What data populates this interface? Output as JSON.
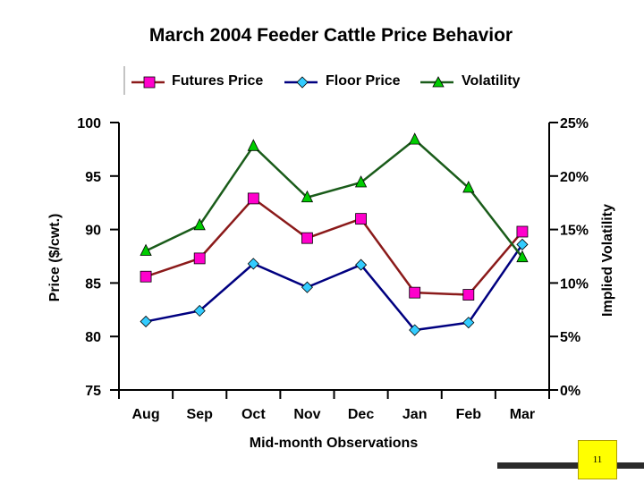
{
  "chart_data": {
    "type": "line",
    "title": "March 2004 Feeder Cattle Price Behavior",
    "xlabel": "Mid-month Observations",
    "ylabel": "Price ($/cwt.)",
    "y2label": "Implied Volatility",
    "categories": [
      "Aug",
      "Sep",
      "Oct",
      "Nov",
      "Dec",
      "Jan",
      "Feb",
      "Mar"
    ],
    "ylim": [
      75,
      100
    ],
    "yticks": [
      75,
      80,
      85,
      90,
      95,
      100
    ],
    "y2lim": [
      0,
      25
    ],
    "y2ticks": [
      "0%",
      "5%",
      "10%",
      "15%",
      "20%",
      "25%"
    ],
    "legend_position": "top",
    "grid": false,
    "series": [
      {
        "name": "Futures Price",
        "axis": "left",
        "color": "#8b1a1a",
        "marker": "square",
        "marker_color": "#ff00cc",
        "values": [
          85.6,
          87.3,
          92.9,
          89.2,
          91.0,
          84.1,
          83.9,
          89.8
        ]
      },
      {
        "name": "Floor Price",
        "axis": "left",
        "color": "#000080",
        "marker": "diamond",
        "marker_color": "#33ccff",
        "values": [
          81.4,
          82.4,
          86.8,
          84.6,
          86.7,
          80.6,
          81.3,
          88.6
        ]
      },
      {
        "name": "Volatility",
        "axis": "right",
        "color": "#1a5c1a",
        "marker": "triangle",
        "marker_color": "#00cc00",
        "values": [
          13.0,
          15.4,
          22.8,
          18.0,
          19.4,
          23.4,
          18.9,
          12.4
        ]
      }
    ]
  },
  "page": {
    "number": "11"
  }
}
